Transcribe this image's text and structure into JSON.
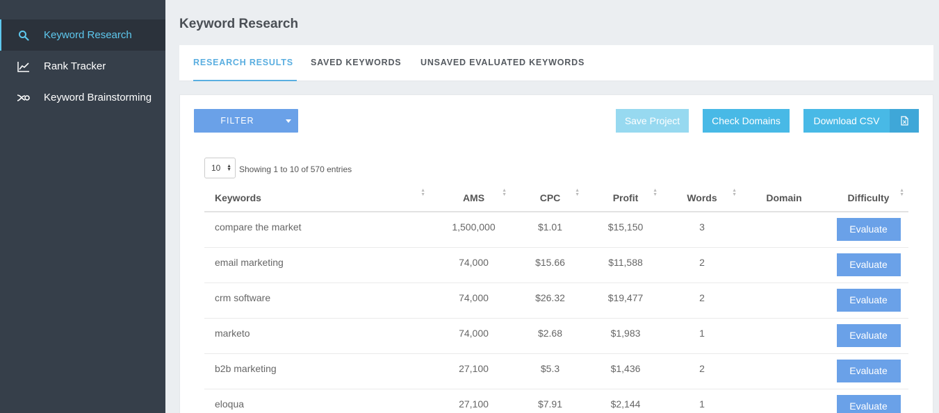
{
  "sidebar": {
    "items": [
      {
        "label": "Keyword Research",
        "icon": "search-icon",
        "active": true
      },
      {
        "label": "Rank Tracker",
        "icon": "chart-line-icon",
        "active": false
      },
      {
        "label": "Keyword Brainstorming",
        "icon": "brainstorm-icon",
        "active": false
      }
    ]
  },
  "page": {
    "title": "Keyword Research"
  },
  "tabs": [
    {
      "label": "RESEARCH RESULTS",
      "active": true
    },
    {
      "label": "SAVED KEYWORDS",
      "active": false
    },
    {
      "label": "UNSAVED EVALUATED KEYWORDS",
      "active": false
    }
  ],
  "toolbar": {
    "filter_label": "FILTER",
    "save_project_label": "Save Project",
    "check_domains_label": "Check Domains",
    "download_csv_label": "Download CSV"
  },
  "table": {
    "page_length": "10",
    "info": "Showing 1 to 10 of 570 entries",
    "columns": [
      "Keywords",
      "AMS",
      "CPC",
      "Profit",
      "Words",
      "Domain",
      "Difficulty"
    ],
    "evaluate_label": "Evaluate",
    "rows": [
      {
        "keyword": "compare the market",
        "ams": "1,500,000",
        "cpc": "$1.01",
        "profit": "$15,150",
        "words": "3",
        "domain": ""
      },
      {
        "keyword": "email marketing",
        "ams": "74,000",
        "cpc": "$15.66",
        "profit": "$11,588",
        "words": "2",
        "domain": ""
      },
      {
        "keyword": "crm software",
        "ams": "74,000",
        "cpc": "$26.32",
        "profit": "$19,477",
        "words": "2",
        "domain": ""
      },
      {
        "keyword": "marketo",
        "ams": "74,000",
        "cpc": "$2.68",
        "profit": "$1,983",
        "words": "1",
        "domain": ""
      },
      {
        "keyword": "b2b marketing",
        "ams": "27,100",
        "cpc": "$5.3",
        "profit": "$1,436",
        "words": "2",
        "domain": ""
      },
      {
        "keyword": "eloqua",
        "ams": "27,100",
        "cpc": "$7.91",
        "profit": "$2,144",
        "words": "1",
        "domain": ""
      }
    ]
  },
  "colors": {
    "sidebar": "#363f4a",
    "accent": "#5ec8ee",
    "primary_button": "#6aa1e8",
    "info_button": "#48b9e6"
  }
}
